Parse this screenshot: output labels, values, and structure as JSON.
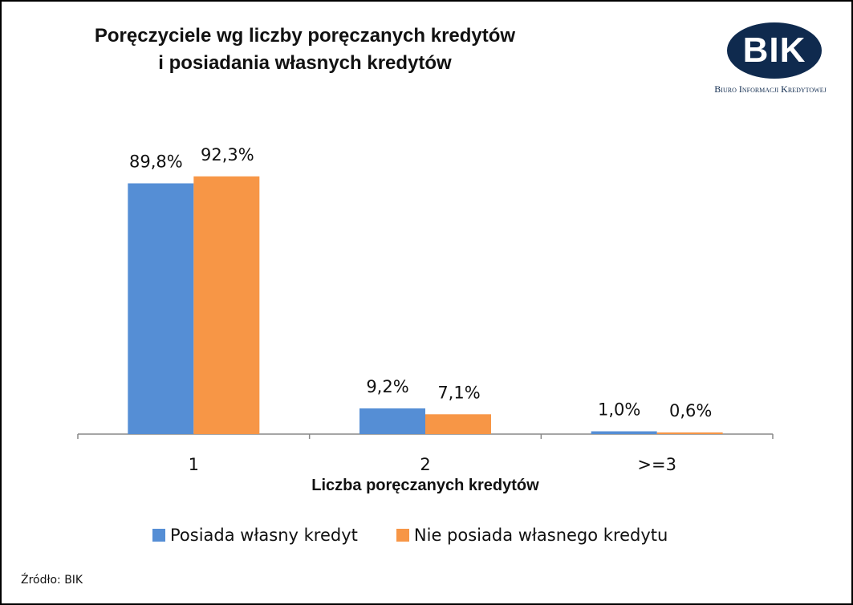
{
  "title": "Poręczyciele wg liczby poręczanych kredytów\ni posiadania własnych kredytów",
  "logo": {
    "text": "BIK",
    "subtitle": "Biuro Informacji Kredytowej",
    "color": "#0f2a4e"
  },
  "source": "Źródło: BIK",
  "chart_data": {
    "type": "bar",
    "xlabel": "Liczba poręczanych kredytów",
    "ylabel": "",
    "categories": [
      "1",
      "2",
      ">=3"
    ],
    "ylim": [
      0,
      100
    ],
    "grid": false,
    "legend_position": "bottom",
    "series": [
      {
        "name": "Posiada własny kredyt",
        "color": "#558ed5",
        "values": [
          89.8,
          9.2,
          1.0
        ],
        "labels": [
          "89,8%",
          "9,2%",
          "1,0%"
        ]
      },
      {
        "name": "Nie posiada własnego kredytu",
        "color": "#f79646",
        "values": [
          92.3,
          7.1,
          0.6
        ],
        "labels": [
          "92,3%",
          "7,1%",
          "0,6%"
        ]
      }
    ]
  }
}
